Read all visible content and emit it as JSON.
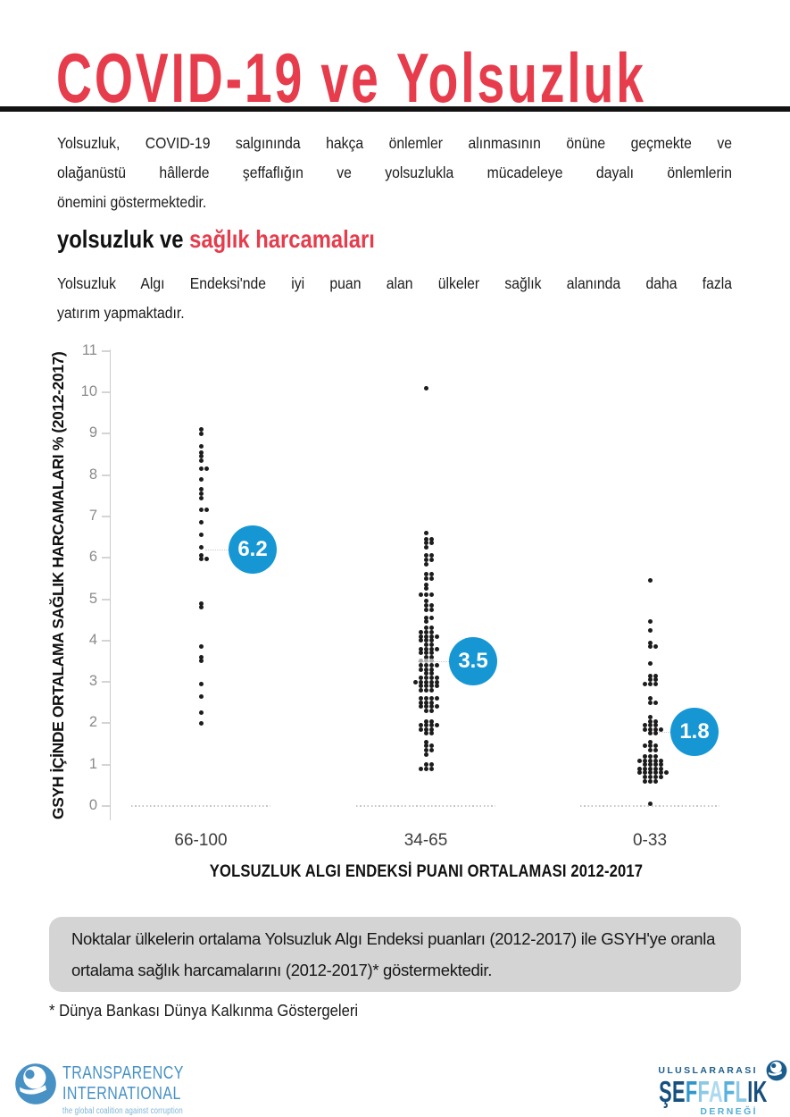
{
  "header": {
    "title": "COVID-19 ve Yolsuzluk",
    "title_color": "#e63c4c"
  },
  "intro": {
    "lines": [
      "Yolsuzluk, COVID-19 salgınında hakça önlemler alınmasının önüne geçmekte ve",
      "olağanüstü hâllerde şeffaflığın ve yolsuzlukla mücadeleye dayalı önlemlerin",
      "önemini göstermektedir."
    ]
  },
  "section": {
    "heading_black": "yolsuzluk ve",
    "heading_red": "sağlık harcamaları",
    "body_lines": [
      "Yolsuzluk Algı Endeksi'nde iyi puan alan ülkeler sağlık alanında daha fazla",
      "yatırım yapmaktadır."
    ]
  },
  "chart_data": {
    "type": "scatter",
    "title": "",
    "xlabel": "YOLSUZLUK ALGI ENDEKSİ PUANI ORTALAMASI 2012-2017",
    "ylabel": "GSYH İÇİNDE ORTALAMA SAĞLIK HARCAMALARI % (2012-2017)",
    "ylim": [
      0,
      11
    ],
    "yticks": [
      0,
      1,
      2,
      3,
      4,
      5,
      6,
      7,
      8,
      9,
      10,
      11
    ],
    "categories": [
      "66-100",
      "34-65",
      "0-33"
    ],
    "means": [
      6.2,
      3.5,
      1.8
    ],
    "mean_color": "#1697d4",
    "dot_color": "#1c1c1c",
    "groups": [
      {
        "label": "66-100",
        "mean": 6.2,
        "conn_start_dx": 5,
        "rows": [
          [
            9.1,
            1
          ],
          [
            9.0,
            1
          ],
          [
            8.7,
            1
          ],
          [
            8.55,
            1
          ],
          [
            8.45,
            1
          ],
          [
            8.35,
            1
          ],
          [
            8.15,
            2
          ],
          [
            7.9,
            1
          ],
          [
            7.65,
            1
          ],
          [
            7.55,
            1
          ],
          [
            7.45,
            1
          ],
          [
            7.15,
            2
          ],
          [
            6.85,
            1
          ],
          [
            6.55,
            1
          ],
          [
            6.25,
            1
          ],
          [
            6.05,
            1
          ],
          [
            5.97,
            2
          ],
          [
            4.9,
            1
          ],
          [
            4.8,
            1
          ],
          [
            3.85,
            1
          ],
          [
            3.6,
            1
          ],
          [
            3.5,
            1
          ],
          [
            2.95,
            1
          ],
          [
            2.65,
            1
          ],
          [
            2.25,
            1
          ],
          [
            2.0,
            1
          ]
        ]
      },
      {
        "label": "34-65",
        "mean": 3.5,
        "conn_start_dx": -9,
        "rows": [
          [
            10.1,
            1
          ],
          [
            6.6,
            1
          ],
          [
            6.45,
            2
          ],
          [
            6.35,
            2
          ],
          [
            6.25,
            1
          ],
          [
            6.05,
            2
          ],
          [
            5.95,
            2
          ],
          [
            5.85,
            1
          ],
          [
            5.6,
            2
          ],
          [
            5.5,
            2
          ],
          [
            5.35,
            1
          ],
          [
            5.25,
            1
          ],
          [
            5.1,
            3
          ],
          [
            4.95,
            1
          ],
          [
            4.85,
            2
          ],
          [
            4.75,
            2
          ],
          [
            4.55,
            2
          ],
          [
            4.45,
            1
          ],
          [
            4.3,
            2
          ],
          [
            4.2,
            3
          ],
          [
            4.1,
            4
          ],
          [
            4.0,
            3
          ],
          [
            3.9,
            2
          ],
          [
            3.8,
            4
          ],
          [
            3.7,
            3
          ],
          [
            3.6,
            2
          ],
          [
            3.5,
            3,
            "#a8a8a8"
          ],
          [
            3.4,
            4
          ],
          [
            3.3,
            3
          ],
          [
            3.2,
            2
          ],
          [
            3.1,
            4
          ],
          [
            3.0,
            5
          ],
          [
            2.9,
            4
          ],
          [
            2.8,
            3
          ],
          [
            2.6,
            4
          ],
          [
            2.5,
            3
          ],
          [
            2.4,
            4
          ],
          [
            2.3,
            2
          ],
          [
            2.05,
            2
          ],
          [
            1.95,
            4
          ],
          [
            1.85,
            3
          ],
          [
            1.75,
            2
          ],
          [
            1.55,
            1
          ],
          [
            1.45,
            2
          ],
          [
            1.35,
            2
          ],
          [
            1.25,
            1
          ],
          [
            1.0,
            2
          ],
          [
            0.9,
            3
          ]
        ]
      },
      {
        "label": "0-33",
        "mean": 1.8,
        "conn_start_dx": 5,
        "rows": [
          [
            5.45,
            1
          ],
          [
            4.45,
            1
          ],
          [
            4.25,
            1
          ],
          [
            3.95,
            1
          ],
          [
            3.85,
            2
          ],
          [
            3.45,
            1
          ],
          [
            3.15,
            2
          ],
          [
            3.05,
            2
          ],
          [
            2.95,
            3
          ],
          [
            2.6,
            1
          ],
          [
            2.5,
            2
          ],
          [
            2.15,
            1
          ],
          [
            2.05,
            2
          ],
          [
            1.95,
            3
          ],
          [
            1.85,
            4
          ],
          [
            1.75,
            2
          ],
          [
            1.55,
            1
          ],
          [
            1.45,
            3
          ],
          [
            1.35,
            2
          ],
          [
            1.2,
            3
          ],
          [
            1.1,
            5
          ],
          [
            1.0,
            4
          ],
          [
            0.9,
            5
          ],
          [
            0.8,
            6
          ],
          [
            0.7,
            4
          ],
          [
            0.6,
            3
          ],
          [
            0.05,
            1
          ]
        ]
      }
    ],
    "layout": {
      "y_zero": 902,
      "unit": 46.3,
      "axis_x": 123,
      "axis_top": 391,
      "axis_bottom": 918,
      "centers": [
        225,
        477,
        728
      ],
      "badge_cx": [
        283,
        530,
        778
      ],
      "baseline_half": 78,
      "cat_label_y": 930
    }
  },
  "note": {
    "lines": [
      "Noktalar ülkelerin ortalama Yolsuzluk Algı Endeksi puanları (2012-2017) ile GSYH'ye oranla",
      "ortalama sağlık harcamalarını (2012-2017)* göstermektedir."
    ]
  },
  "footnote": "* Dünya Bankası Dünya Kalkınma Göstergeleri",
  "footer": {
    "ti": {
      "line1": "TRANSPARENCY",
      "line2": "INTERNATIONAL",
      "tagline": "the global coalition against corruption"
    },
    "seffaflik": {
      "line1": "ULUSLARARASI",
      "word": "ŞEFFAFLIK",
      "line3": "DERNEĞİ",
      "letter_colors": [
        "#174f7c",
        "#174f7c",
        "#2f97cb",
        "#8cc9e7",
        "#aed9f0",
        "#58b1dc",
        "#8cc9e7",
        "#174f7c",
        "#174f7c"
      ]
    }
  }
}
